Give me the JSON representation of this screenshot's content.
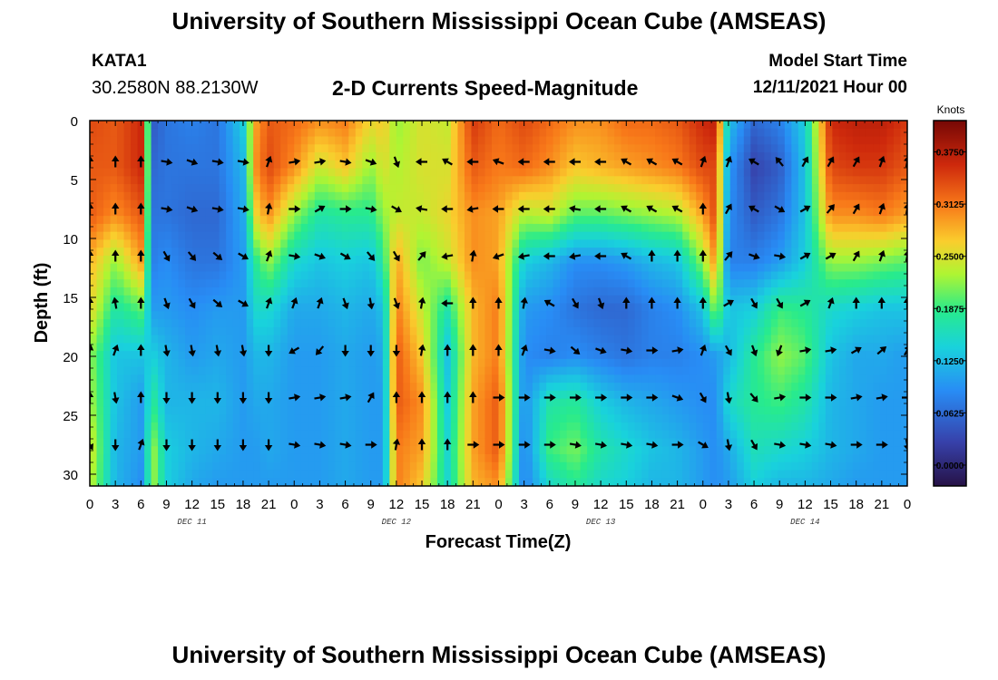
{
  "header": {
    "title": "University of Southern Mississippi Ocean Cube (AMSEAS)",
    "station_id": "KATA1",
    "coordinates": "30.2580N  88.2130W",
    "subtitle": "2-D Currents Speed-Magnitude",
    "model_start_label": "Model Start Time",
    "model_start_value": "12/11/2021 Hour 00"
  },
  "footer": {
    "title": "University of Southern Mississippi Ocean Cube (AMSEAS)"
  },
  "chart_data": {
    "type": "heatmap",
    "title": "2-D Currents Speed-Magnitude",
    "xlabel": "Forecast Time(Z)",
    "ylabel": "Depth (ft)",
    "x_hours": [
      0,
      96
    ],
    "y_depth": [
      0,
      31
    ],
    "x_tick_labels": [
      "0",
      "3",
      "6",
      "9",
      "12",
      "15",
      "18",
      "21",
      "0",
      "3",
      "6",
      "9",
      "12",
      "15",
      "18",
      "21",
      "0",
      "3",
      "6",
      "9",
      "12",
      "15",
      "18",
      "21",
      "0",
      "3",
      "6",
      "9",
      "12",
      "15",
      "18",
      "21",
      "0"
    ],
    "y_ticks": [
      0,
      5,
      10,
      15,
      20,
      25,
      30
    ],
    "day_labels": [
      {
        "label": "DEC 11",
        "hour": 12
      },
      {
        "label": "DEC 12",
        "hour": 36
      },
      {
        "label": "DEC 13",
        "hour": 60
      },
      {
        "label": "DEC 14",
        "hour": 84
      }
    ],
    "colorbar": {
      "units": "Knots",
      "min": -0.025,
      "max": 0.4125,
      "tick_labels": [
        "0.3750",
        "0.3125",
        "0.2500",
        "0.1875",
        "0.1250",
        "0.0625",
        "0.0000"
      ],
      "tick_values": [
        0.375,
        0.3125,
        0.25,
        0.1875,
        0.125,
        0.0625,
        0.0
      ]
    },
    "speed_grid": {
      "hours": [
        0,
        3,
        6,
        7.5,
        9,
        12,
        15,
        18,
        19.5,
        21,
        24,
        27,
        30,
        33,
        34.5,
        36,
        39,
        42,
        45,
        48,
        51,
        54,
        57,
        60,
        63,
        66,
        69,
        72,
        73.5,
        75,
        78,
        81,
        84,
        87,
        90,
        93,
        96
      ],
      "depths": [
        0,
        4,
        8,
        12,
        16,
        20,
        24,
        28,
        31
      ],
      "values": [
        [
          0.34,
          0.33,
          0.33,
          0.28,
          0.26,
          0.22,
          0.23,
          0.25,
          0.24
        ],
        [
          0.33,
          0.33,
          0.3,
          0.22,
          0.17,
          0.13,
          0.13,
          0.12,
          0.12
        ],
        [
          0.36,
          0.36,
          0.33,
          0.29,
          0.2,
          0.13,
          0.1,
          0.1,
          0.09
        ],
        [
          0.05,
          0.06,
          0.07,
          0.08,
          0.1,
          0.14,
          0.18,
          0.22,
          0.22
        ],
        [
          0.07,
          0.07,
          0.07,
          0.09,
          0.1,
          0.12,
          0.12,
          0.14,
          0.14
        ],
        [
          0.08,
          0.07,
          0.06,
          0.07,
          0.09,
          0.1,
          0.12,
          0.12,
          0.11
        ],
        [
          0.07,
          0.07,
          0.06,
          0.07,
          0.1,
          0.11,
          0.12,
          0.11,
          0.1
        ],
        [
          0.14,
          0.12,
          0.11,
          0.1,
          0.1,
          0.1,
          0.1,
          0.1,
          0.1
        ],
        [
          0.29,
          0.3,
          0.26,
          0.18,
          0.15,
          0.12,
          0.11,
          0.1,
          0.1
        ],
        [
          0.33,
          0.34,
          0.3,
          0.22,
          0.15,
          0.12,
          0.11,
          0.11,
          0.1
        ],
        [
          0.32,
          0.3,
          0.22,
          0.15,
          0.11,
          0.1,
          0.1,
          0.1,
          0.1
        ],
        [
          0.3,
          0.24,
          0.17,
          0.13,
          0.11,
          0.1,
          0.1,
          0.1,
          0.1
        ],
        [
          0.31,
          0.27,
          0.18,
          0.14,
          0.12,
          0.11,
          0.11,
          0.11,
          0.11
        ],
        [
          0.26,
          0.22,
          0.18,
          0.13,
          0.11,
          0.1,
          0.1,
          0.1,
          0.1
        ],
        [
          0.27,
          0.25,
          0.22,
          0.18,
          0.13,
          0.11,
          0.1,
          0.1,
          0.1
        ],
        [
          0.22,
          0.23,
          0.24,
          0.29,
          0.31,
          0.33,
          0.33,
          0.31,
          0.31
        ],
        [
          0.25,
          0.25,
          0.24,
          0.21,
          0.24,
          0.27,
          0.3,
          0.29,
          0.27
        ],
        [
          0.24,
          0.25,
          0.26,
          0.24,
          0.17,
          0.13,
          0.14,
          0.15,
          0.15
        ],
        [
          0.35,
          0.33,
          0.3,
          0.3,
          0.28,
          0.28,
          0.29,
          0.29,
          0.28
        ],
        [
          0.32,
          0.31,
          0.29,
          0.29,
          0.31,
          0.31,
          0.33,
          0.33,
          0.3
        ],
        [
          0.34,
          0.32,
          0.23,
          0.14,
          0.1,
          0.09,
          0.09,
          0.08,
          0.08
        ],
        [
          0.32,
          0.3,
          0.24,
          0.12,
          0.09,
          0.08,
          0.17,
          0.19,
          0.15
        ],
        [
          0.3,
          0.27,
          0.2,
          0.09,
          0.07,
          0.09,
          0.18,
          0.21,
          0.18
        ],
        [
          0.3,
          0.28,
          0.2,
          0.09,
          0.06,
          0.08,
          0.14,
          0.17,
          0.15
        ],
        [
          0.32,
          0.29,
          0.21,
          0.1,
          0.06,
          0.07,
          0.12,
          0.15,
          0.14
        ],
        [
          0.32,
          0.3,
          0.22,
          0.12,
          0.08,
          0.08,
          0.11,
          0.13,
          0.12
        ],
        [
          0.33,
          0.31,
          0.23,
          0.13,
          0.09,
          0.08,
          0.1,
          0.12,
          0.12
        ],
        [
          0.36,
          0.34,
          0.29,
          0.22,
          0.13,
          0.09,
          0.09,
          0.1,
          0.1
        ],
        [
          0.37,
          0.34,
          0.34,
          0.3,
          0.22,
          0.1,
          0.09,
          0.09,
          0.09
        ],
        [
          0.13,
          0.1,
          0.09,
          0.08,
          0.13,
          0.12,
          0.15,
          0.11,
          0.1
        ],
        [
          0.06,
          0.03,
          0.05,
          0.08,
          0.14,
          0.18,
          0.18,
          0.16,
          0.14
        ],
        [
          0.08,
          0.05,
          0.07,
          0.1,
          0.19,
          0.22,
          0.19,
          0.15,
          0.12
        ],
        [
          0.14,
          0.13,
          0.13,
          0.14,
          0.18,
          0.2,
          0.17,
          0.14,
          0.12
        ],
        [
          0.36,
          0.34,
          0.3,
          0.22,
          0.15,
          0.13,
          0.12,
          0.12,
          0.11
        ],
        [
          0.37,
          0.35,
          0.3,
          0.22,
          0.14,
          0.11,
          0.11,
          0.11,
          0.1
        ],
        [
          0.37,
          0.35,
          0.31,
          0.21,
          0.13,
          0.11,
          0.1,
          0.1,
          0.1
        ],
        [
          0.35,
          0.33,
          0.29,
          0.2,
          0.13,
          0.1,
          0.1,
          0.1,
          0.1
        ]
      ]
    },
    "vectors": {
      "hours": [
        0,
        3,
        6,
        9,
        12,
        15,
        18,
        21,
        24,
        27,
        30,
        33,
        36,
        39,
        42,
        45,
        48,
        51,
        54,
        57,
        60,
        63,
        66,
        69,
        72,
        75,
        78,
        81,
        84,
        87,
        90,
        93,
        96
      ],
      "depths": [
        3.5,
        7.5,
        11.5,
        15.5,
        19.5,
        23.5,
        27.5
      ],
      "directions_deg": [
        [
          0,
          0,
          0,
          0,
          10,
          0,
          150
        ],
        [
          0,
          0,
          0,
          350,
          20,
          170,
          180
        ],
        [
          0,
          0,
          0,
          0,
          0,
          0,
          20
        ],
        [
          100,
          100,
          150,
          160,
          170,
          180,
          180
        ],
        [
          110,
          110,
          140,
          150,
          170,
          180,
          180
        ],
        [
          100,
          100,
          130,
          130,
          170,
          180,
          180
        ],
        [
          100,
          100,
          120,
          120,
          170,
          180,
          180
        ],
        [
          20,
          10,
          20,
          20,
          180,
          180,
          180
        ],
        [
          80,
          90,
          100,
          20,
          240,
          80,
          100
        ],
        [
          80,
          60,
          110,
          20,
          220,
          80,
          100
        ],
        [
          100,
          90,
          120,
          160,
          180,
          80,
          100
        ],
        [
          110,
          100,
          140,
          170,
          180,
          30,
          90
        ],
        [
          160,
          120,
          150,
          160,
          180,
          0,
          10
        ],
        [
          270,
          280,
          40,
          10,
          10,
          0,
          0
        ],
        [
          300,
          270,
          260,
          270,
          0,
          0,
          0
        ],
        [
          270,
          260,
          10,
          0,
          0,
          0,
          90
        ],
        [
          290,
          270,
          250,
          0,
          0,
          90,
          90
        ],
        [
          270,
          270,
          260,
          10,
          20,
          90,
          90
        ],
        [
          270,
          270,
          270,
          300,
          100,
          90,
          90
        ],
        [
          270,
          280,
          260,
          150,
          130,
          90,
          100
        ],
        [
          270,
          270,
          270,
          160,
          110,
          90,
          100
        ],
        [
          300,
          300,
          300,
          0,
          100,
          90,
          100
        ],
        [
          300,
          300,
          0,
          0,
          90,
          90,
          100
        ],
        [
          300,
          300,
          0,
          0,
          80,
          110,
          90
        ],
        [
          20,
          0,
          0,
          0,
          20,
          150,
          120
        ],
        [
          20,
          30,
          40,
          60,
          150,
          170,
          170
        ],
        [
          300,
          300,
          110,
          150,
          160,
          140,
          150
        ],
        [
          320,
          120,
          100,
          150,
          200,
          80,
          100
        ],
        [
          30,
          60,
          60,
          60,
          80,
          90,
          100
        ],
        [
          30,
          40,
          60,
          20,
          80,
          90,
          100
        ],
        [
          30,
          30,
          30,
          0,
          60,
          80,
          90
        ],
        [
          20,
          20,
          20,
          0,
          50,
          80,
          90
        ],
        [
          10,
          10,
          10,
          0,
          30,
          90,
          170
        ]
      ]
    }
  }
}
